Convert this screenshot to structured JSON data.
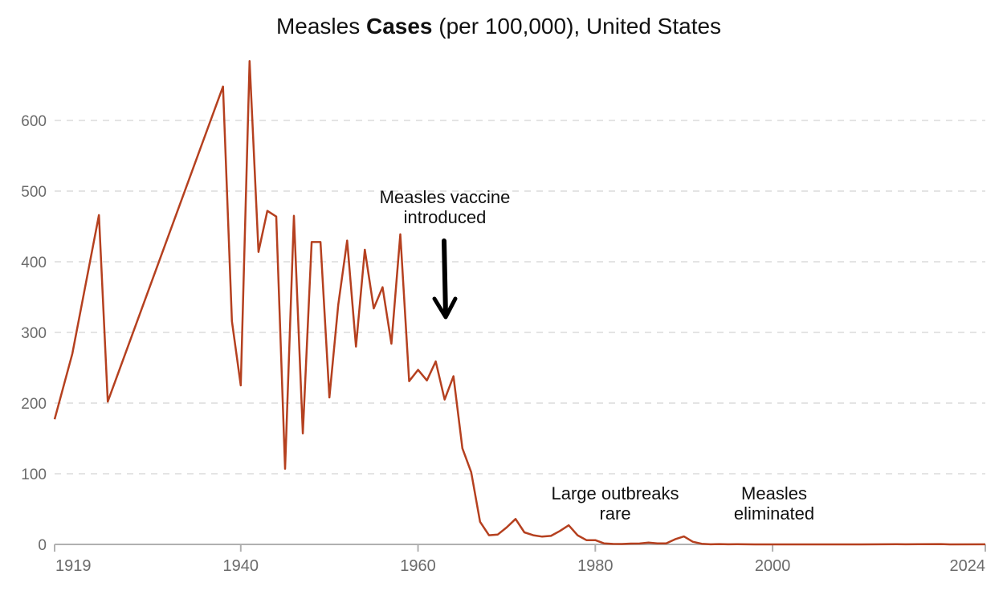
{
  "chart_data": {
    "type": "line",
    "title": {
      "prefix": "Measles ",
      "bold": "Cases",
      "suffix": " (per 100,000), United States"
    },
    "xlabel": "",
    "ylabel": "",
    "xlim": [
      1919,
      2024
    ],
    "ylim": [
      0,
      690
    ],
    "grid": true,
    "y_ticks": [
      0,
      100,
      200,
      300,
      400,
      500,
      600
    ],
    "x_ticks": [
      1919,
      1940,
      1960,
      1980,
      2000,
      2024
    ],
    "line_color": "#b5401f",
    "x": [
      1919,
      1921,
      1924,
      1925,
      1938,
      1939,
      1940,
      1941,
      1942,
      1943,
      1944,
      1945,
      1946,
      1947,
      1948,
      1949,
      1950,
      1951,
      1952,
      1953,
      1954,
      1955,
      1956,
      1957,
      1958,
      1959,
      1960,
      1961,
      1962,
      1963,
      1964,
      1965,
      1966,
      1967,
      1968,
      1969,
      1970,
      1971,
      1972,
      1973,
      1974,
      1975,
      1976,
      1977,
      1978,
      1979,
      1980,
      1981,
      1982,
      1983,
      1984,
      1985,
      1986,
      1987,
      1988,
      1989,
      1990,
      1991,
      1992,
      1993,
      1994,
      1995,
      1996,
      1997,
      1998,
      2000,
      2005,
      2010,
      2014,
      2015,
      2019,
      2020,
      2024
    ],
    "y": [
      177,
      270,
      466,
      202,
      648,
      316,
      225,
      684,
      414,
      472,
      464,
      107,
      465,
      157,
      428,
      428,
      208,
      339,
      430,
      280,
      417,
      334,
      364,
      284,
      439,
      231,
      247,
      232,
      259,
      205,
      238,
      136,
      102,
      32,
      13,
      14,
      24,
      36,
      17,
      13,
      11,
      12,
      19,
      27,
      13,
      6,
      6,
      1.4,
      0.7,
      0.6,
      1.1,
      1.2,
      2.6,
      1.5,
      1.4,
      7.3,
      11.2,
      3.8,
      0.9,
      0.1,
      0.4,
      0.1,
      0.2,
      0.1,
      0.04,
      0.03,
      0.02,
      0.02,
      0.2,
      0.06,
      0.4,
      0.004,
      0.1
    ],
    "annotations": [
      {
        "lines": [
          "Measles vaccine",
          "introduced"
        ],
        "year": 1963,
        "arrow": true
      },
      {
        "lines": [
          "Large outbreaks",
          "rare"
        ],
        "year": 1977
      },
      {
        "lines": [
          "Measles",
          "eliminated"
        ],
        "year": 2000
      }
    ]
  }
}
